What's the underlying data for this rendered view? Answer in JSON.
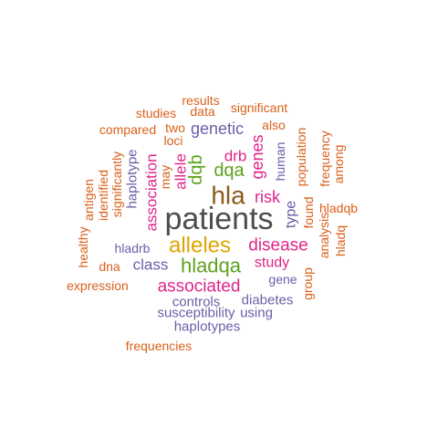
{
  "palette": {
    "gray": "#4D4D4D",
    "brown": "#8C5A1E",
    "gold": "#E0A400",
    "green": "#5DA11E",
    "magenta": "#E0248A",
    "purple": "#6A60A8",
    "orange": "#D9601A"
  },
  "words": [
    {
      "text": "patients",
      "color": "gray"
    },
    {
      "text": "hla",
      "color": "brown"
    },
    {
      "text": "alleles",
      "color": "gold"
    },
    {
      "text": "hladqa",
      "color": "green"
    },
    {
      "text": "disease",
      "color": "magenta"
    },
    {
      "text": "associated",
      "color": "magenta"
    },
    {
      "text": "dqa",
      "color": "green"
    },
    {
      "text": "dqb",
      "color": "green"
    },
    {
      "text": "genetic",
      "color": "purple"
    },
    {
      "text": "risk",
      "color": "magenta"
    },
    {
      "text": "genes",
      "color": "magenta"
    },
    {
      "text": "drb",
      "color": "magenta"
    },
    {
      "text": "association",
      "color": "magenta"
    },
    {
      "text": "allele",
      "color": "magenta"
    },
    {
      "text": "class",
      "color": "purple"
    },
    {
      "text": "study",
      "color": "magenta"
    },
    {
      "text": "controls",
      "color": "purple"
    },
    {
      "text": "diabetes",
      "color": "purple"
    },
    {
      "text": "susceptibility",
      "color": "purple"
    },
    {
      "text": "using",
      "color": "purple"
    },
    {
      "text": "haplotypes",
      "color": "purple"
    },
    {
      "text": "frequencies",
      "color": "orange"
    },
    {
      "text": "results",
      "color": "orange"
    },
    {
      "text": "data",
      "color": "orange"
    },
    {
      "text": "significant",
      "color": "orange"
    },
    {
      "text": "studies",
      "color": "orange"
    },
    {
      "text": "compared",
      "color": "orange"
    },
    {
      "text": "two",
      "color": "orange"
    },
    {
      "text": "loci",
      "color": "orange"
    },
    {
      "text": "also",
      "color": "orange"
    },
    {
      "text": "may",
      "color": "orange"
    },
    {
      "text": "haplotype",
      "color": "purple"
    },
    {
      "text": "significantly",
      "color": "orange"
    },
    {
      "text": "identified",
      "color": "orange"
    },
    {
      "text": "antigen",
      "color": "orange"
    },
    {
      "text": "healthy",
      "color": "orange"
    },
    {
      "text": "hladrb",
      "color": "purple"
    },
    {
      "text": "dna",
      "color": "orange"
    },
    {
      "text": "expression",
      "color": "orange"
    },
    {
      "text": "human",
      "color": "purple"
    },
    {
      "text": "type",
      "color": "purple"
    },
    {
      "text": "population",
      "color": "orange"
    },
    {
      "text": "found",
      "color": "orange"
    },
    {
      "text": "frequency",
      "color": "orange"
    },
    {
      "text": "among",
      "color": "orange"
    },
    {
      "text": "analysis",
      "color": "orange"
    },
    {
      "text": "hladqb",
      "color": "orange"
    },
    {
      "text": "hladq",
      "color": "orange"
    },
    {
      "text": "gene",
      "color": "purple"
    },
    {
      "text": "group",
      "color": "orange"
    }
  ]
}
